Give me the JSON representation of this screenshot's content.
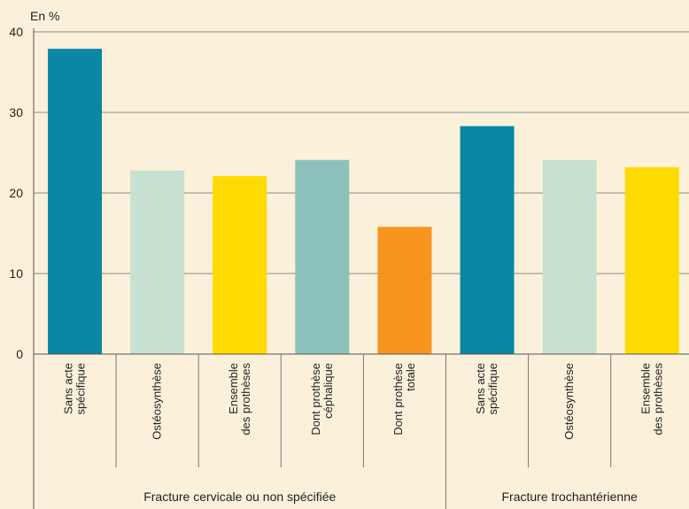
{
  "chart_data": {
    "type": "bar",
    "ylabel": "En %",
    "ylim": [
      0,
      40
    ],
    "yticks": [
      "0",
      "10",
      "20",
      "30",
      "40"
    ],
    "grid": true,
    "categories": [
      {
        "lines": [
          "Sans acte",
          "spécifique"
        ],
        "value": 37.9,
        "color": "#0b87a4"
      },
      {
        "lines": [
          "Ostéosynthèse"
        ],
        "value": 22.8,
        "color": "#c8e0cf"
      },
      {
        "lines": [
          "Ensemble",
          "des prothèses"
        ],
        "value": 22.1,
        "color": "#fedb00"
      },
      {
        "lines": [
          "Dont prothèse",
          "céphalique"
        ],
        "value": 24.1,
        "color": "#8cc1bb"
      },
      {
        "lines": [
          "Dont prothèse",
          "totale"
        ],
        "value": 15.8,
        "color": "#f7941d"
      },
      {
        "lines": [
          "Sans acte",
          "spécifique"
        ],
        "value": 28.3,
        "color": "#0b87a4"
      },
      {
        "lines": [
          "Ostéosynthèse"
        ],
        "value": 24.1,
        "color": "#c8e0cf"
      },
      {
        "lines": [
          "Ensemble",
          "des prothèses"
        ],
        "value": 23.2,
        "color": "#fedb00"
      }
    ],
    "groups": [
      {
        "label": "Fracture cervicale ou non spécifiée",
        "from": 0,
        "to": 4
      },
      {
        "label": "Fracture trochantérienne",
        "from": 5,
        "to": 7
      }
    ]
  }
}
